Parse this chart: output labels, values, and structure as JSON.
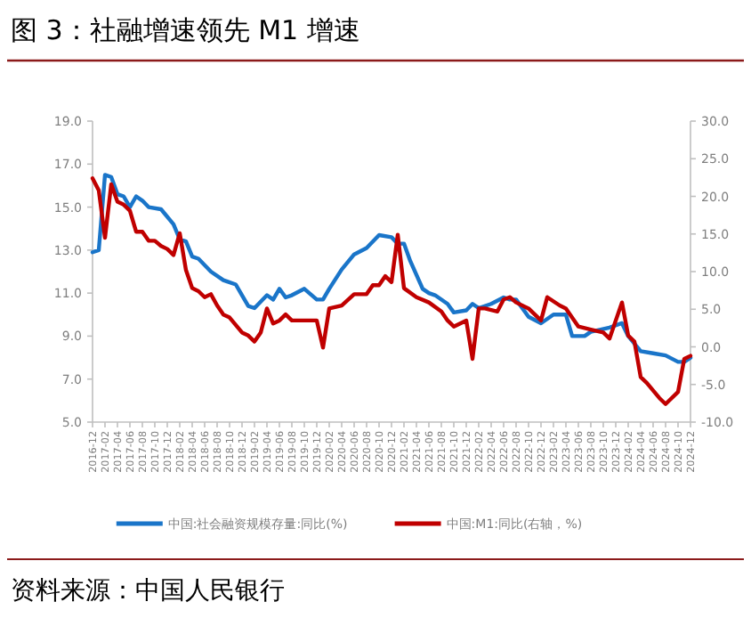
{
  "chart_data": {
    "type": "line",
    "title": "图 3：社融增速领先 M1 增速",
    "annotations": [
      "资料来源：中国人民银行"
    ],
    "xlim": [
      "2016-12",
      "2024-12"
    ],
    "xticks": [
      "2016-12",
      "2017-02",
      "2017-04",
      "2017-06",
      "2017-08",
      "2017-10",
      "2017-12",
      "2018-02",
      "2018-04",
      "2018-06",
      "2018-08",
      "2018-10",
      "2018-12",
      "2019-02",
      "2019-04",
      "2019-06",
      "2019-08",
      "2019-10",
      "2019-12",
      "2020-02",
      "2020-04",
      "2020-06",
      "2020-08",
      "2020-10",
      "2020-12",
      "2021-02",
      "2021-04",
      "2021-06",
      "2021-08",
      "2021-10",
      "2021-12",
      "2022-02",
      "2022-04",
      "2022-06",
      "2022-08",
      "2022-10",
      "2022-12",
      "2023-02",
      "2023-04",
      "2023-06",
      "2023-08",
      "2023-10",
      "2023-12",
      "2024-02",
      "2024-04",
      "2024-06",
      "2024-08",
      "2024-10",
      "2024-12"
    ],
    "ylim": [
      5,
      19
    ],
    "yticks": [
      {
        "value": 5,
        "label": "5.0"
      },
      {
        "value": 7,
        "label": "7.0"
      },
      {
        "value": 9,
        "label": "9.0"
      },
      {
        "value": 11,
        "label": "11.0"
      },
      {
        "value": 13,
        "label": "13.0"
      },
      {
        "value": 15,
        "label": "15.0"
      },
      {
        "value": 17,
        "label": "17.0"
      },
      {
        "value": 19,
        "label": "19.0"
      }
    ],
    "y2lim": [
      -10,
      30
    ],
    "y2ticks": [
      {
        "value": -10,
        "label": "-10.0"
      },
      {
        "value": -5,
        "label": "-5.0"
      },
      {
        "value": 0,
        "label": "0.0"
      },
      {
        "value": 5,
        "label": "5.0"
      },
      {
        "value": 10,
        "label": "10.0"
      },
      {
        "value": 15,
        "label": "15.0"
      },
      {
        "value": 20,
        "label": "20.0"
      },
      {
        "value": 25,
        "label": "25.0"
      },
      {
        "value": 30,
        "label": "30.0"
      }
    ],
    "grid": false,
    "legend": "bottom",
    "marker": "none",
    "line_style": "solid",
    "series": [
      {
        "name": "中国:社会融资规模存量:同比(%)",
        "color": "#1a75c9",
        "x": [
          "2016-12",
          "2017-01",
          "2017-02",
          "2017-03",
          "2017-04",
          "2017-05",
          "2017-06",
          "2017-07",
          "2017-08",
          "2017-09",
          "2017-11",
          "2018-01",
          "2018-02",
          "2018-03",
          "2018-04",
          "2018-05",
          "2018-07",
          "2018-09",
          "2018-11",
          "2018-12",
          "2019-01",
          "2019-02",
          "2019-04",
          "2019-05",
          "2019-06",
          "2019-07",
          "2019-08",
          "2019-10",
          "2019-12",
          "2020-01",
          "2020-02",
          "2020-04",
          "2020-06",
          "2020-08",
          "2020-09",
          "2020-10",
          "2020-12",
          "2021-01",
          "2021-02",
          "2021-03",
          "2021-05",
          "2021-06",
          "2021-07",
          "2021-09",
          "2021-10",
          "2021-12",
          "2022-01",
          "2022-02",
          "2022-04",
          "2022-06",
          "2022-07",
          "2022-08",
          "2022-10",
          "2022-12",
          "2023-02",
          "2023-04",
          "2023-05",
          "2023-07",
          "2023-08",
          "2023-11",
          "2024-01",
          "2024-02",
          "2024-04",
          "2024-06",
          "2024-08",
          "2024-10",
          "2024-11",
          "2024-12"
        ],
        "values": [
          12.9,
          13.0,
          16.5,
          16.4,
          15.6,
          15.5,
          15.0,
          15.5,
          15.3,
          15.0,
          14.9,
          14.2,
          13.5,
          13.4,
          12.7,
          12.6,
          12.0,
          11.6,
          11.4,
          10.9,
          10.4,
          10.3,
          10.9,
          10.7,
          11.2,
          10.8,
          10.9,
          11.2,
          10.7,
          10.7,
          11.2,
          12.1,
          12.8,
          13.1,
          13.4,
          13.7,
          13.6,
          13.3,
          13.3,
          12.5,
          11.2,
          11.0,
          10.9,
          10.5,
          10.1,
          10.2,
          10.5,
          10.3,
          10.5,
          10.8,
          10.7,
          10.7,
          9.9,
          9.6,
          10.0,
          10.0,
          9.0,
          9.0,
          9.2,
          9.4,
          9.6,
          9.0,
          8.3,
          8.2,
          8.1,
          7.8,
          7.8,
          8.0
        ]
      },
      {
        "name": "中国:M1:同比(右轴，%)",
        "color": "#c00000",
        "axis": "y2",
        "x": [
          "2016-12",
          "2017-01",
          "2017-02",
          "2017-03",
          "2017-04",
          "2017-05",
          "2017-06",
          "2017-07",
          "2017-08",
          "2017-09",
          "2017-10",
          "2017-11",
          "2017-12",
          "2018-01",
          "2018-02",
          "2018-03",
          "2018-04",
          "2018-05",
          "2018-06",
          "2018-07",
          "2018-08",
          "2018-09",
          "2018-10",
          "2018-12",
          "2019-01",
          "2019-02",
          "2019-03",
          "2019-04",
          "2019-05",
          "2019-06",
          "2019-07",
          "2019-08",
          "2019-10",
          "2019-12",
          "2020-01",
          "2020-02",
          "2020-04",
          "2020-06",
          "2020-08",
          "2020-09",
          "2020-10",
          "2020-11",
          "2020-12",
          "2021-01",
          "2021-02",
          "2021-04",
          "2021-06",
          "2021-08",
          "2021-09",
          "2021-10",
          "2021-12",
          "2022-01",
          "2022-02",
          "2022-03",
          "2022-05",
          "2022-06",
          "2022-07",
          "2022-08",
          "2022-10",
          "2022-12",
          "2023-01",
          "2023-03",
          "2023-04",
          "2023-06",
          "2023-08",
          "2023-10",
          "2023-11",
          "2024-01",
          "2024-02",
          "2024-03",
          "2024-04",
          "2024-05",
          "2024-07",
          "2024-08",
          "2024-10",
          "2024-11",
          "2024-12"
        ],
        "values": [
          22.4,
          20.8,
          14.5,
          21.6,
          19.3,
          18.9,
          18.1,
          15.3,
          15.3,
          14.1,
          14.1,
          13.4,
          13.0,
          12.2,
          15.1,
          10.2,
          7.8,
          7.4,
          6.6,
          7.0,
          5.5,
          4.3,
          3.9,
          1.9,
          1.5,
          0.7,
          1.9,
          5.1,
          3.1,
          3.5,
          4.3,
          3.5,
          3.5,
          3.5,
          -0.1,
          5.1,
          5.5,
          7.0,
          7.0,
          8.2,
          8.2,
          9.4,
          8.6,
          14.9,
          7.8,
          6.6,
          5.9,
          4.7,
          3.5,
          2.7,
          3.5,
          -1.6,
          5.1,
          5.1,
          4.7,
          6.3,
          6.6,
          5.9,
          5.1,
          3.5,
          6.6,
          5.5,
          5.1,
          2.7,
          2.3,
          1.9,
          1.1,
          5.9,
          1.5,
          0.7,
          -4.0,
          -4.8,
          -6.8,
          -7.6,
          -6.0,
          -1.6,
          -1.2
        ]
      }
    ]
  }
}
